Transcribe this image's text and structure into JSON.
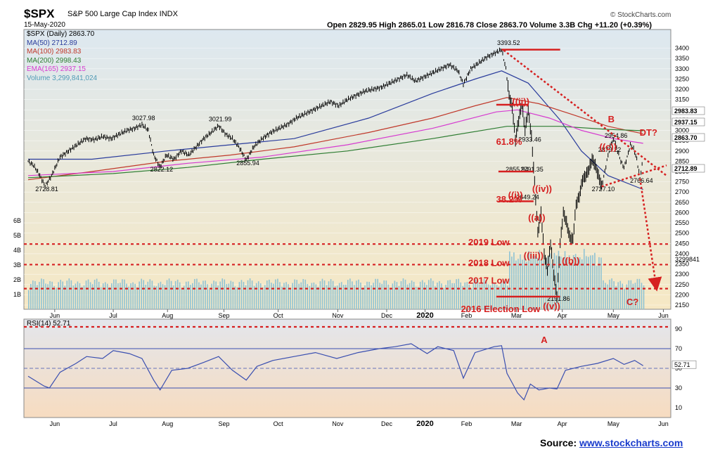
{
  "header": {
    "symbol": "$SPX",
    "name": "S&P 500 Large Cap Index INDX",
    "date": "15-May-2020",
    "ohlc": "Open 2829.95  High 2865.01  Low 2816.78  Close 2863.70  Volume 3.3B  Chg +11.20 (+0.39%)",
    "brand": "© StockCharts.com"
  },
  "legend": [
    {
      "text": "$SPX (Daily) 2863.70",
      "color": "#000000"
    },
    {
      "text": "MA(50) 2712.89",
      "color": "#2a3c9c"
    },
    {
      "text": "MA(100) 2983.83",
      "color": "#c0392b"
    },
    {
      "text": "MA(200) 2998.43",
      "color": "#2e7d32"
    },
    {
      "text": "EMA(165) 2937.15",
      "color": "#d63bd0"
    },
    {
      "text": "Volume 3,299,841,024",
      "color": "#4f9ab5"
    }
  ],
  "source": {
    "label": "Source: ",
    "link": "www.stockcharts.com"
  },
  "colors": {
    "price_bg_top": "#dde8f0",
    "price_bg_bottom": "#f6e8c4",
    "rsi_bg_top": "#e3e6ec",
    "rsi_bg_bottom": "#f7dcc0",
    "volume": "#8fc3d4",
    "annotation": "#d62020"
  },
  "chart_data": [
    {
      "type": "line",
      "panel": "price",
      "title": "$SPX S&P 500 Large Cap Index INDX",
      "ylim": [
        2150,
        3450
      ],
      "y_ticks": [
        2150,
        2200,
        2250,
        2300,
        2350,
        2400,
        2450,
        2500,
        2550,
        2600,
        2650,
        2700,
        2750,
        2800,
        2850,
        2900,
        2950,
        3000,
        3050,
        3100,
        3150,
        3200,
        3250,
        3300,
        3350,
        3400
      ],
      "x_ticks": [
        "Jun",
        "Jul",
        "Aug",
        "Sep",
        "Oct",
        "Nov",
        "Dec",
        "2020",
        "Feb",
        "Mar",
        "Apr",
        "May",
        "Jun"
      ],
      "x_tick_idx": [
        25,
        80,
        131,
        184,
        235,
        291,
        337,
        373,
        412,
        459,
        502,
        550,
        597
      ],
      "price_series": [
        {
          "i": 0,
          "v": 2850
        },
        {
          "i": 5,
          "v": 2830
        },
        {
          "i": 10,
          "v": 2790
        },
        {
          "i": 16,
          "v": 2728.81
        },
        {
          "i": 22,
          "v": 2780
        },
        {
          "i": 30,
          "v": 2870
        },
        {
          "i": 38,
          "v": 2900
        },
        {
          "i": 46,
          "v": 2930
        },
        {
          "i": 54,
          "v": 2960
        },
        {
          "i": 62,
          "v": 2955
        },
        {
          "i": 70,
          "v": 2970
        },
        {
          "i": 78,
          "v": 2960
        },
        {
          "i": 85,
          "v": 2980
        },
        {
          "i": 93,
          "v": 3000
        },
        {
          "i": 100,
          "v": 3010
        },
        {
          "i": 107,
          "v": 3027.98
        },
        {
          "i": 113,
          "v": 3000
        },
        {
          "i": 118,
          "v": 2880
        },
        {
          "i": 124,
          "v": 2822.12
        },
        {
          "i": 130,
          "v": 2880
        },
        {
          "i": 137,
          "v": 2860
        },
        {
          "i": 144,
          "v": 2900
        },
        {
          "i": 151,
          "v": 2880
        },
        {
          "i": 158,
          "v": 2920
        },
        {
          "i": 165,
          "v": 2960
        },
        {
          "i": 172,
          "v": 2990
        },
        {
          "i": 179,
          "v": 3021.99
        },
        {
          "i": 186,
          "v": 2980
        },
        {
          "i": 192,
          "v": 2960
        },
        {
          "i": 198,
          "v": 2920
        },
        {
          "i": 205,
          "v": 2855.94
        },
        {
          "i": 212,
          "v": 2920
        },
        {
          "i": 220,
          "v": 2960
        },
        {
          "i": 228,
          "v": 2990
        },
        {
          "i": 236,
          "v": 3010
        },
        {
          "i": 244,
          "v": 3030
        },
        {
          "i": 252,
          "v": 3060
        },
        {
          "i": 260,
          "v": 3080
        },
        {
          "i": 268,
          "v": 3100
        },
        {
          "i": 276,
          "v": 3120
        },
        {
          "i": 284,
          "v": 3140
        },
        {
          "i": 292,
          "v": 3120
        },
        {
          "i": 300,
          "v": 3150
        },
        {
          "i": 308,
          "v": 3170
        },
        {
          "i": 316,
          "v": 3190
        },
        {
          "i": 324,
          "v": 3200
        },
        {
          "i": 332,
          "v": 3210
        },
        {
          "i": 340,
          "v": 3230
        },
        {
          "i": 348,
          "v": 3250
        },
        {
          "i": 356,
          "v": 3270
        },
        {
          "i": 364,
          "v": 3240
        },
        {
          "i": 372,
          "v": 3260
        },
        {
          "i": 380,
          "v": 3280
        },
        {
          "i": 388,
          "v": 3300
        },
        {
          "i": 396,
          "v": 3320
        },
        {
          "i": 404,
          "v": 3290
        },
        {
          "i": 409,
          "v": 3225
        },
        {
          "i": 416,
          "v": 3300
        },
        {
          "i": 424,
          "v": 3330
        },
        {
          "i": 432,
          "v": 3360
        },
        {
          "i": 440,
          "v": 3380
        },
        {
          "i": 445,
          "v": 3393.52
        },
        {
          "i": 449,
          "v": 3300
        },
        {
          "i": 452,
          "v": 3170
        },
        {
          "i": 455,
          "v": 3110
        },
        {
          "i": 458,
          "v": 2955
        },
        {
          "i": 461,
          "v": 3050
        },
        {
          "i": 464,
          "v": 3130
        },
        {
          "i": 467,
          "v": 3000
        },
        {
          "i": 470,
          "v": 3100
        },
        {
          "i": 473,
          "v": 2970
        },
        {
          "i": 476,
          "v": 2750
        },
        {
          "i": 479,
          "v": 2500
        },
        {
          "i": 482,
          "v": 2600
        },
        {
          "i": 485,
          "v": 2400
        },
        {
          "i": 488,
          "v": 2320
        },
        {
          "i": 491,
          "v": 2450
        },
        {
          "i": 494,
          "v": 2300
        },
        {
          "i": 497,
          "v": 2191.86
        },
        {
          "i": 500,
          "v": 2450
        },
        {
          "i": 503,
          "v": 2600
        },
        {
          "i": 506,
          "v": 2550
        },
        {
          "i": 509,
          "v": 2480
        },
        {
          "i": 512,
          "v": 2470
        },
        {
          "i": 515,
          "v": 2640
        },
        {
          "i": 518,
          "v": 2680
        },
        {
          "i": 521,
          "v": 2760
        },
        {
          "i": 524,
          "v": 2780
        },
        {
          "i": 527,
          "v": 2810
        },
        {
          "i": 530,
          "v": 2860
        },
        {
          "i": 533,
          "v": 2830
        },
        {
          "i": 536,
          "v": 2780
        },
        {
          "i": 539,
          "v": 2727.1
        },
        {
          "i": 542,
          "v": 2800
        },
        {
          "i": 545,
          "v": 2879.22
        },
        {
          "i": 548,
          "v": 2940
        },
        {
          "i": 551,
          "v": 2954.86
        },
        {
          "i": 554,
          "v": 2900
        },
        {
          "i": 557,
          "v": 2850
        },
        {
          "i": 560,
          "v": 2820
        },
        {
          "i": 563,
          "v": 2870
        },
        {
          "i": 566,
          "v": 2930
        },
        {
          "i": 569,
          "v": 2910
        },
        {
          "i": 572,
          "v": 2860
        },
        {
          "i": 575,
          "v": 2766.64
        },
        {
          "i": 578,
          "v": 2863.7
        }
      ],
      "series": [
        {
          "name": "MA(50) 2712.89",
          "color": "#2a3c9c",
          "points": [
            [
              0,
              2860
            ],
            [
              60,
              2860
            ],
            [
              130,
              2900
            ],
            [
              190,
              2930
            ],
            [
              250,
              2960
            ],
            [
              320,
              3060
            ],
            [
              380,
              3180
            ],
            [
              420,
              3250
            ],
            [
              445,
              3290
            ],
            [
              470,
              3230
            ],
            [
              500,
              3050
            ],
            [
              520,
              2900
            ],
            [
              545,
              2780
            ],
            [
              578,
              2712.89
            ]
          ]
        },
        {
          "name": "MA(100) 2983.83",
          "color": "#c0392b",
          "points": [
            [
              0,
              2760
            ],
            [
              60,
              2800
            ],
            [
              130,
              2850
            ],
            [
              190,
              2880
            ],
            [
              250,
              2920
            ],
            [
              320,
              2990
            ],
            [
              380,
              3060
            ],
            [
              420,
              3120
            ],
            [
              450,
              3160
            ],
            [
              480,
              3130
            ],
            [
              510,
              3080
            ],
            [
              545,
              3020
            ],
            [
              578,
              2983.83
            ]
          ]
        },
        {
          "name": "MA(200) 2998.43",
          "color": "#2e7d32",
          "points": [
            [
              0,
              2770
            ],
            [
              80,
              2790
            ],
            [
              150,
              2820
            ],
            [
              220,
              2860
            ],
            [
              300,
              2900
            ],
            [
              380,
              2960
            ],
            [
              450,
              3020
            ],
            [
              500,
              3020
            ],
            [
              545,
              3005
            ],
            [
              578,
              2998.43
            ]
          ]
        },
        {
          "name": "EMA(165) 2937.15",
          "color": "#d63bd0",
          "points": [
            [
              0,
              2780
            ],
            [
              80,
              2800
            ],
            [
              150,
              2840
            ],
            [
              220,
              2870
            ],
            [
              300,
              2930
            ],
            [
              380,
              3010
            ],
            [
              440,
              3090
            ],
            [
              460,
              3100
            ],
            [
              490,
              3060
            ],
            [
              520,
              3000
            ],
            [
              550,
              2960
            ],
            [
              578,
              2937.15
            ]
          ]
        }
      ],
      "right_labels": [
        "2983.83",
        "2937.15",
        "2863.70",
        "2712.89"
      ],
      "point_labels": [
        "3393.52",
        "3027.98",
        "3021.99",
        "2822.12",
        "2855.94",
        "2728.81",
        "2191.86",
        "2954.86",
        "2879.22",
        "2727.10",
        "2766.64",
        "2933.46",
        "2791.35",
        "2649.24",
        "2855.94"
      ],
      "annotations": [
        "((i))",
        "((ii))",
        "((iii))",
        "((iv))",
        "((v))",
        "((a))",
        "((b))",
        "((c))",
        "B",
        "DT?",
        "C?",
        "A",
        "61.8%",
        "38.2%",
        "2019 Low",
        "2018 Low",
        "2017 Low",
        "2016 Election Low"
      ],
      "horizontal_levels": [
        {
          "label": "2019 Low",
          "value": 2447
        },
        {
          "label": "2018 Low",
          "value": 2347
        },
        {
          "label": "2017 Low",
          "value": 2230
        }
      ]
    },
    {
      "type": "bar",
      "panel": "volume",
      "name": "Volume 3,299,841,024",
      "y_ticks": [
        "1B",
        "2B",
        "3B",
        "4B",
        "5B",
        "6B"
      ],
      "last_label": "3299841"
    },
    {
      "type": "line",
      "panel": "rsi",
      "name": "RSI(14) 52.71",
      "ylim": [
        0,
        100
      ],
      "y_ticks": [
        10,
        30,
        50,
        70,
        90
      ],
      "last_value": 52.71,
      "points": [
        [
          0,
          42
        ],
        [
          15,
          32
        ],
        [
          20,
          30
        ],
        [
          30,
          46
        ],
        [
          45,
          55
        ],
        [
          55,
          62
        ],
        [
          70,
          60
        ],
        [
          80,
          68
        ],
        [
          95,
          65
        ],
        [
          107,
          60
        ],
        [
          118,
          38
        ],
        [
          124,
          28
        ],
        [
          135,
          48
        ],
        [
          150,
          50
        ],
        [
          165,
          56
        ],
        [
          179,
          62
        ],
        [
          192,
          48
        ],
        [
          205,
          38
        ],
        [
          215,
          52
        ],
        [
          230,
          58
        ],
        [
          250,
          62
        ],
        [
          270,
          66
        ],
        [
          290,
          60
        ],
        [
          310,
          66
        ],
        [
          330,
          70
        ],
        [
          345,
          72
        ],
        [
          360,
          75
        ],
        [
          375,
          65
        ],
        [
          385,
          72
        ],
        [
          400,
          68
        ],
        [
          409,
          40
        ],
        [
          420,
          66
        ],
        [
          438,
          72
        ],
        [
          445,
          73
        ],
        [
          450,
          45
        ],
        [
          455,
          35
        ],
        [
          460,
          25
        ],
        [
          466,
          18
        ],
        [
          472,
          34
        ],
        [
          480,
          28
        ],
        [
          490,
          30
        ],
        [
          497,
          29
        ],
        [
          505,
          48
        ],
        [
          520,
          52
        ],
        [
          535,
          55
        ],
        [
          550,
          60
        ],
        [
          560,
          54
        ],
        [
          570,
          58
        ],
        [
          578,
          52.71
        ]
      ]
    }
  ]
}
